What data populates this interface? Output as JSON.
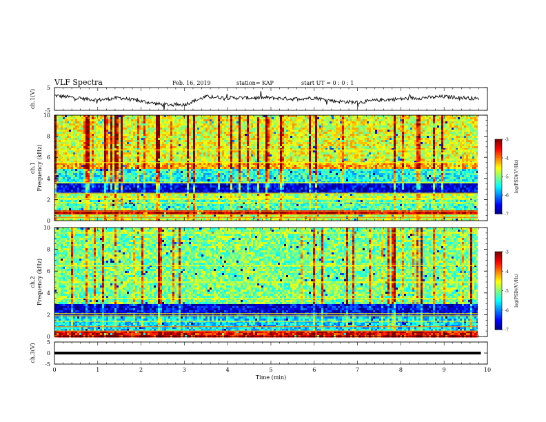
{
  "header": {
    "title": "VLF Spectra",
    "date": "Feb. 16, 2019",
    "station": "station= KAP",
    "start": "start  UT =   0 : 0  : 1"
  },
  "chart_data": [
    {
      "type": "line",
      "ylabel": "ch.1(V)",
      "ylim": [
        -5,
        5
      ],
      "yticks": [
        "5",
        "-5"
      ],
      "xlim": [
        0,
        10
      ],
      "series_description_only": false,
      "x": [
        0,
        0.5,
        1,
        1.5,
        2,
        2.5,
        3,
        3.5,
        4,
        4.5,
        5,
        5.5,
        6,
        6.5,
        7,
        7.5,
        8,
        8.5,
        9,
        9.5,
        9.8
      ],
      "y": [
        1.5,
        0.5,
        -0.5,
        0.5,
        -1.0,
        -2.5,
        -2.5,
        1.0,
        0.5,
        0.5,
        0.5,
        0,
        0.5,
        -1.0,
        -1.5,
        -0.5,
        0,
        0.5,
        1.0,
        0.5,
        0
      ]
    },
    {
      "type": "heatmap",
      "ylabel": "ch.1 Frequency (kHz)",
      "ylim": [
        0,
        10
      ],
      "yticks": [
        "0",
        "2",
        "4",
        "6",
        "8",
        "10"
      ],
      "xlim": [
        0,
        9.85
      ],
      "colorbar": {
        "label": "log(PSD)(V²/Hz)",
        "range": [
          -7,
          -3
        ],
        "ticks": [
          "-3",
          "-4",
          "-5",
          "-6",
          "-7"
        ]
      },
      "bands": [
        {
          "from": 0.0,
          "to": 0.5,
          "level": -4.8
        },
        {
          "from": 0.5,
          "to": 1.0,
          "level": -3.3
        },
        {
          "from": 1.0,
          "to": 2.0,
          "level": -5.2
        },
        {
          "from": 2.0,
          "to": 2.6,
          "level": -4.8
        },
        {
          "from": 2.6,
          "to": 3.5,
          "level": -6.6
        },
        {
          "from": 3.5,
          "to": 5.0,
          "level": -5.4
        },
        {
          "from": 5.0,
          "to": 5.5,
          "level": -4.2
        },
        {
          "from": 5.5,
          "to": 10.0,
          "level": -4.6
        }
      ]
    },
    {
      "type": "heatmap",
      "ylabel": "ch.2 Frequency (kHz)",
      "ylim": [
        0,
        10
      ],
      "yticks": [
        "0",
        "2",
        "4",
        "6",
        "8",
        "10"
      ],
      "xlim": [
        0,
        9.85
      ],
      "colorbar": {
        "label": "log(PSD)(V²/Hz)",
        "range": [
          -7,
          -3
        ],
        "ticks": [
          "-3",
          "-4",
          "-5",
          "-6",
          "-7"
        ]
      },
      "bands": [
        {
          "from": 0.0,
          "to": 0.6,
          "level": -3.5
        },
        {
          "from": 0.6,
          "to": 1.8,
          "level": -5.6
        },
        {
          "from": 1.8,
          "to": 3.0,
          "level": -6.6
        },
        {
          "from": 3.0,
          "to": 10.0,
          "level": -5.0
        }
      ]
    },
    {
      "type": "line",
      "ylabel": "ch.3(V)",
      "ylim": [
        -5,
        5
      ],
      "yticks": [
        "5",
        "0",
        "-5"
      ],
      "xlim": [
        0,
        10
      ],
      "x": [
        0,
        9.85
      ],
      "y": [
        0,
        0
      ]
    }
  ],
  "xaxis": {
    "label": "Time (min)",
    "ticks": [
      "0",
      "1",
      "2",
      "3",
      "4",
      "5",
      "6",
      "7",
      "8",
      "9",
      "10"
    ]
  },
  "colors": {
    "frame": "#000000",
    "colormap": [
      "#00007f",
      "#0000ff",
      "#00ffff",
      "#00ff00",
      "#ffff00",
      "#ff0000",
      "#7f0000"
    ]
  }
}
